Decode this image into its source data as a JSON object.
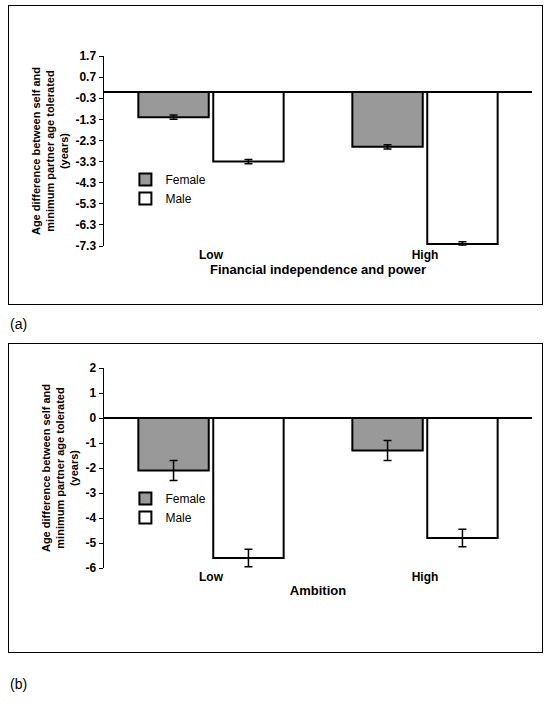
{
  "chart_data": [
    {
      "type": "bar",
      "annotation": "(a)",
      "x_label": "Financial independence and power",
      "y_label": "Age difference between self and\nminimum partner age tolerated\n(years)",
      "categories": [
        "Low",
        "High"
      ],
      "series": [
        {
          "name": "Female",
          "color": "#999999",
          "values": [
            -1.2,
            -2.6
          ],
          "errors": [
            0.1,
            0.1
          ]
        },
        {
          "name": "Male",
          "color": "#ffffff",
          "values": [
            -3.3,
            -7.2
          ],
          "errors": [
            0.1,
            0.1
          ]
        }
      ],
      "ylim": [
        -7.3,
        1.7
      ],
      "yticks": [
        1.7,
        0.7,
        -0.3,
        -1.3,
        -2.3,
        -3.3,
        -4.3,
        -5.3,
        -6.3,
        -7.3
      ],
      "legend": "left",
      "grid": false
    },
    {
      "type": "bar",
      "annotation": "(b)",
      "x_label": "Ambition",
      "y_label": "Age difference between self and\nminimum partner age tolerated\n(years)",
      "categories": [
        "Low",
        "High"
      ],
      "series": [
        {
          "name": "Female",
          "color": "#999999",
          "values": [
            -2.1,
            -1.3
          ],
          "errors": [
            0.4,
            0.4
          ]
        },
        {
          "name": "Male",
          "color": "#ffffff",
          "values": [
            -5.6,
            -4.8
          ],
          "errors": [
            0.35,
            0.35
          ]
        }
      ],
      "ylim": [
        -6,
        2
      ],
      "yticks": [
        2,
        1,
        0,
        -1,
        -2,
        -3,
        -4,
        -5,
        -6
      ],
      "legend": "left",
      "grid": false
    }
  ]
}
